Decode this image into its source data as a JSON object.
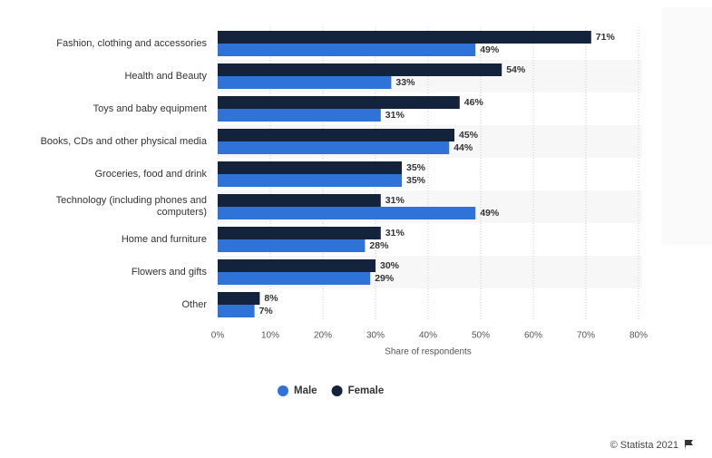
{
  "chart_data": {
    "type": "bar",
    "orientation": "horizontal",
    "x_axis_label": "Share of respondents",
    "categories": [
      "Fashion, clothing and accessories",
      "Health and Beauty",
      "Toys and baby equipment",
      "Books, CDs and other physical media",
      "Groceries, food and drink",
      "Technology (including phones and computers)",
      "Home and furniture",
      "Flowers and gifts",
      "Other"
    ],
    "series": [
      {
        "name": "Female",
        "color": "#14233c",
        "values": [
          71,
          54,
          46,
          45,
          35,
          31,
          31,
          30,
          8
        ],
        "value_labels": [
          "71%",
          "54%",
          "46%",
          "45%",
          "35%",
          "31%",
          "31%",
          "30%",
          "8%"
        ]
      },
      {
        "name": "Male",
        "color": "#2f73d8",
        "values": [
          49,
          33,
          31,
          44,
          35,
          49,
          28,
          29,
          7
        ],
        "value_labels": [
          "49%",
          "33%",
          "31%",
          "44%",
          "35%",
          "49%",
          "28%",
          "29%",
          "7%"
        ]
      }
    ],
    "legend_order": [
      1,
      0
    ],
    "xlim": [
      0,
      80
    ],
    "xticks": [
      {
        "value": 0,
        "label": "0%"
      },
      {
        "value": 10,
        "label": "10%"
      },
      {
        "value": 20,
        "label": "20%"
      },
      {
        "value": 30,
        "label": "30%"
      },
      {
        "value": 40,
        "label": "40%"
      },
      {
        "value": 50,
        "label": "50%"
      },
      {
        "value": 60,
        "label": "60%"
      },
      {
        "value": 70,
        "label": "70%"
      },
      {
        "value": 80,
        "label": "80%"
      }
    ],
    "grid": true,
    "credit": "© Statista 2021"
  }
}
